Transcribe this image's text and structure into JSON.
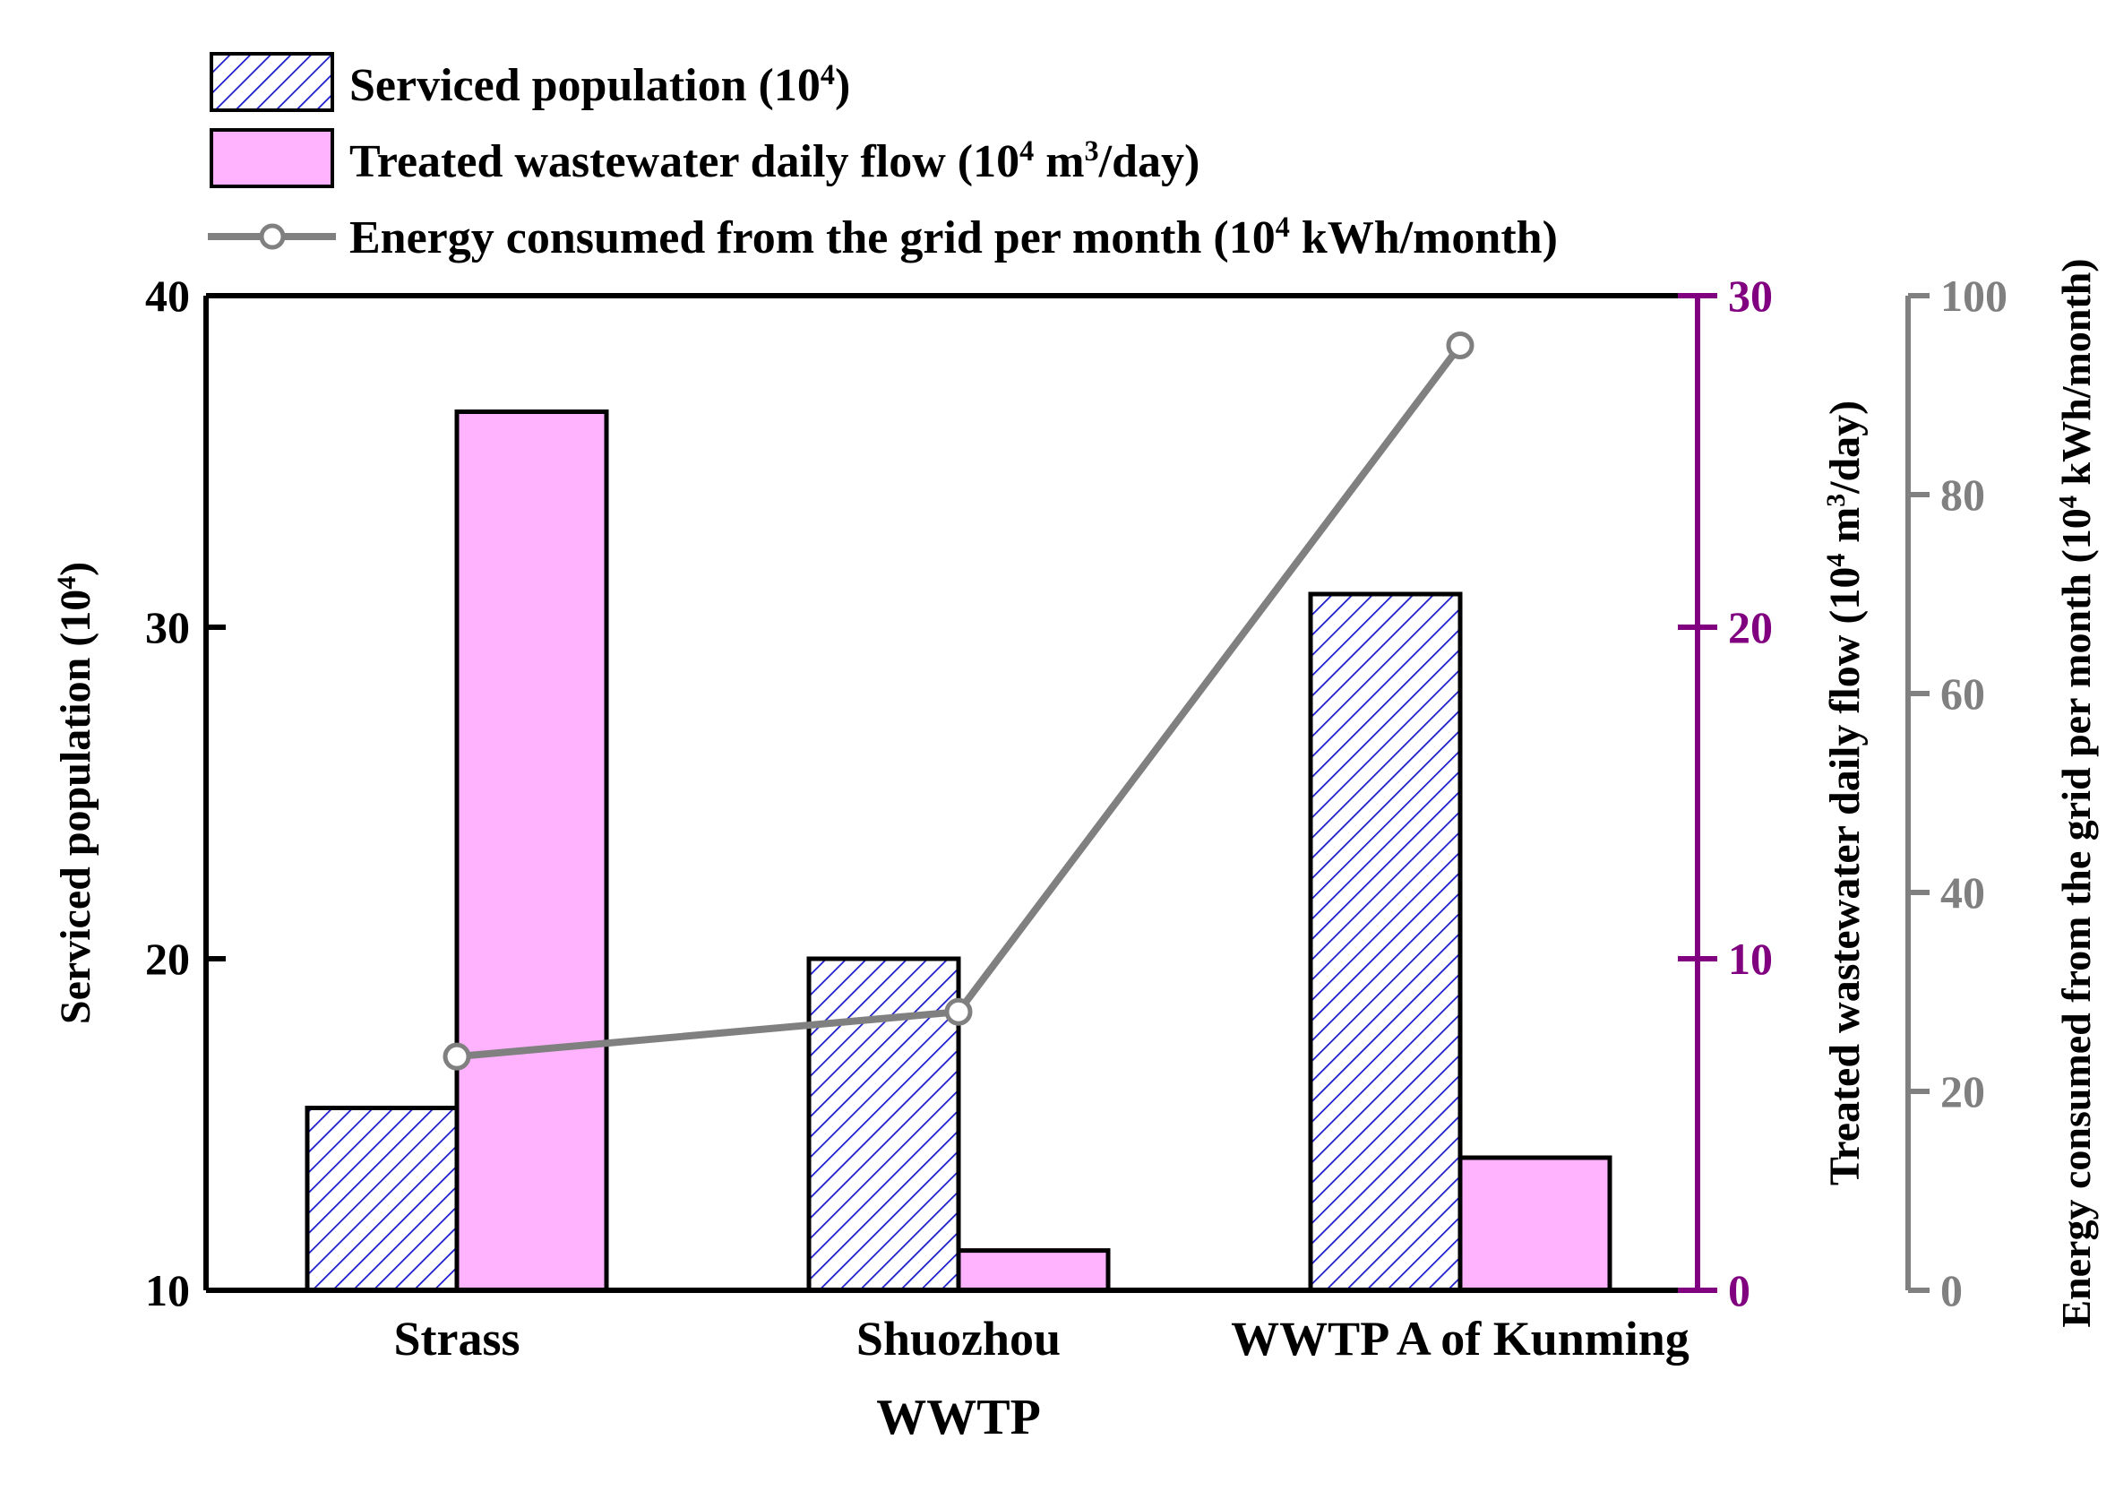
{
  "chart_data": {
    "type": "bar",
    "xlabel": "WWTP",
    "categories": [
      "Strass",
      "Shuozhou",
      "WWTP A of Kunming"
    ],
    "series": [
      {
        "name": "Serviced population (10",
        "name_sup": "4",
        "name_tail": ")",
        "axis": "left",
        "style": "hatched",
        "values": [
          15.5,
          20.0,
          31.0
        ]
      },
      {
        "name": "Treated wastewater daily flow (10",
        "name_sup": "4",
        "name_mid": " m",
        "name_sup2": "3",
        "name_tail": "/day)",
        "axis": "right1",
        "style": "solid",
        "values": [
          26.5,
          1.2,
          4.0
        ]
      },
      {
        "name": "Energy consumed from the grid per month (10",
        "name_sup": "4",
        "name_tail": " kWh/month)",
        "axis": "right2",
        "type": "line",
        "values": [
          23.5,
          28.0,
          95.0
        ]
      }
    ],
    "axes": {
      "left": {
        "label": "Serviced population (10",
        "label_sup": "4",
        "label_tail": ")",
        "ylim": [
          10,
          40
        ],
        "ticks": [
          10,
          20,
          30,
          40
        ]
      },
      "right1": {
        "label": "Treated wastewater daily flow (10",
        "label_sup": "4",
        "label_mid": " m",
        "label_sup2": "3",
        "label_tail": "/day)",
        "ylim": [
          0,
          30
        ],
        "ticks": [
          0,
          10,
          20,
          30
        ]
      },
      "right2": {
        "label": "Energy consumed from the grid per month (10",
        "label_sup": "4",
        "label_tail": " kWh/month)",
        "ylim": [
          0,
          100
        ],
        "ticks": [
          0,
          20,
          40,
          60,
          80,
          100
        ]
      }
    },
    "legend_position": "top-left",
    "colors": {
      "hatch_line": "#1a1acc",
      "hatch_bg": "#ffffff",
      "solid_fill": "#ffb3ff",
      "bar_edge": "#000000",
      "line": "#808080",
      "right1_axis": "#800080",
      "right2_axis": "#808080",
      "left_axis": "#000000"
    }
  }
}
